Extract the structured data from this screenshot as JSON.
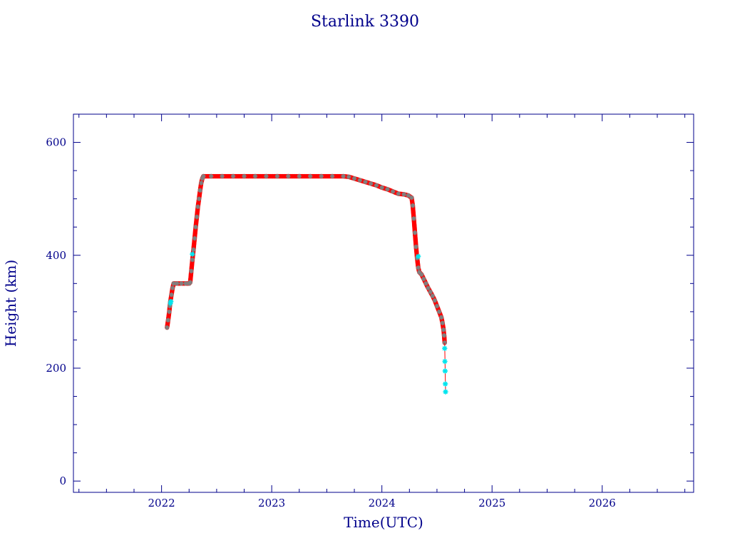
{
  "colors": {
    "axis": "#00008b",
    "text": "#00008b",
    "series_main": "#ff0000",
    "series_edge": "#808080",
    "series_highlight": "#00e5ee"
  },
  "chart_data": {
    "type": "scatter",
    "title": "Starlink 3390",
    "xlabel": "Time(UTC)",
    "ylabel": "Height (km)",
    "xlim": [
      2021.2,
      2026.83
    ],
    "ylim": [
      -20,
      650
    ],
    "x_ticks": [
      2022,
      2023,
      2024,
      2025,
      2026
    ],
    "x_tick_labels": [
      "2022",
      "2023",
      "2024",
      "2025",
      "2026"
    ],
    "y_ticks": [
      0,
      200,
      400,
      600
    ],
    "y_tick_labels": [
      "0",
      "200",
      "400",
      "600"
    ],
    "x_minor_step": 0.25,
    "y_minor_step": 50,
    "grid": false,
    "series": [
      {
        "marker": "star",
        "points": [
          [
            2022.05,
            272
          ],
          [
            2022.06,
            285
          ],
          [
            2022.07,
            300
          ],
          [
            2022.075,
            310
          ],
          [
            2022.08,
            318
          ],
          [
            2022.09,
            330
          ],
          [
            2022.1,
            342
          ],
          [
            2022.11,
            350
          ],
          [
            2022.14,
            350
          ],
          [
            2022.18,
            350
          ],
          [
            2022.22,
            350
          ],
          [
            2022.25,
            350
          ],
          [
            2022.26,
            352
          ],
          [
            2022.27,
            372
          ],
          [
            2022.28,
            392
          ],
          [
            2022.29,
            410
          ],
          [
            2022.3,
            430
          ],
          [
            2022.31,
            450
          ],
          [
            2022.32,
            468
          ],
          [
            2022.33,
            486
          ],
          [
            2022.34,
            500
          ],
          [
            2022.35,
            515
          ],
          [
            2022.36,
            528
          ],
          [
            2022.37,
            536
          ],
          [
            2022.38,
            540
          ],
          [
            2022.45,
            540
          ],
          [
            2022.55,
            540
          ],
          [
            2022.65,
            540
          ],
          [
            2022.75,
            540
          ],
          [
            2022.85,
            540
          ],
          [
            2022.95,
            540
          ],
          [
            2023.05,
            540
          ],
          [
            2023.15,
            540
          ],
          [
            2023.25,
            540
          ],
          [
            2023.35,
            540
          ],
          [
            2023.45,
            540
          ],
          [
            2023.55,
            540
          ],
          [
            2023.65,
            540
          ],
          [
            2023.7,
            539
          ],
          [
            2023.75,
            536
          ],
          [
            2023.8,
            533
          ],
          [
            2023.85,
            530
          ],
          [
            2023.9,
            527
          ],
          [
            2023.95,
            524
          ],
          [
            2024.0,
            520
          ],
          [
            2024.05,
            517
          ],
          [
            2024.1,
            513
          ],
          [
            2024.15,
            509
          ],
          [
            2024.2,
            508
          ],
          [
            2024.24,
            506
          ],
          [
            2024.27,
            502
          ],
          [
            2024.28,
            488
          ],
          [
            2024.29,
            465
          ],
          [
            2024.3,
            440
          ],
          [
            2024.31,
            415
          ],
          [
            2024.32,
            395
          ],
          [
            2024.33,
            378
          ],
          [
            2024.34,
            370
          ],
          [
            2024.36,
            366
          ],
          [
            2024.38,
            358
          ],
          [
            2024.4,
            350
          ],
          [
            2024.42,
            342
          ],
          [
            2024.44,
            335
          ],
          [
            2024.46,
            328
          ],
          [
            2024.48,
            320
          ],
          [
            2024.5,
            310
          ],
          [
            2024.52,
            300
          ],
          [
            2024.54,
            290
          ],
          [
            2024.55,
            280
          ],
          [
            2024.56,
            268
          ],
          [
            2024.565,
            258
          ],
          [
            2024.57,
            245
          ]
        ]
      },
      {
        "marker": "star-highlight",
        "points": [
          [
            2022.08,
            315
          ],
          [
            2022.085,
            318
          ],
          [
            2022.28,
            402
          ],
          [
            2024.33,
            398
          ],
          [
            2024.57,
            235
          ],
          [
            2024.572,
            212
          ],
          [
            2024.574,
            195
          ],
          [
            2024.576,
            172
          ],
          [
            2024.578,
            158
          ]
        ]
      }
    ]
  }
}
